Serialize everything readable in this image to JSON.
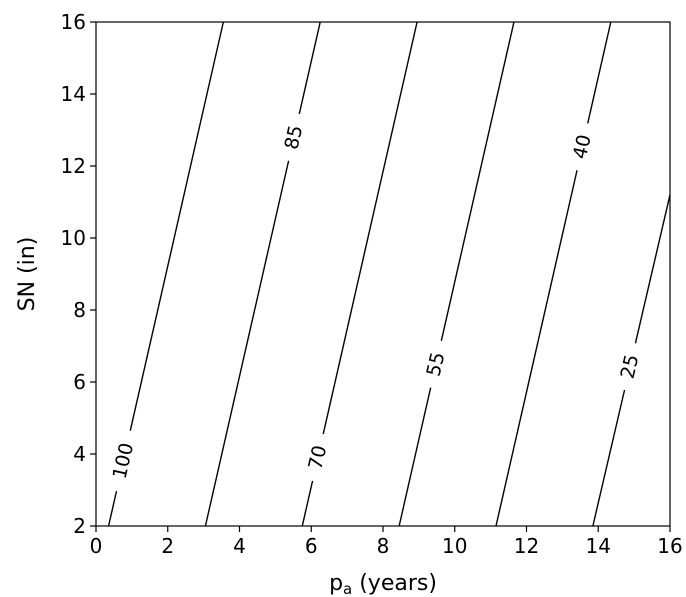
{
  "chart_data": {
    "type": "contour",
    "xlabel": "p",
    "xlabel_subscript": "a",
    "xlabel_suffix": " (years)",
    "ylabel": "SN (in)",
    "xlim": [
      0,
      16
    ],
    "ylim": [
      2,
      16
    ],
    "xticks": [
      "0",
      "2",
      "4",
      "6",
      "8",
      "10",
      "12",
      "14",
      "16"
    ],
    "yticks": [
      "2",
      "4",
      "6",
      "8",
      "10",
      "12",
      "14",
      "16"
    ],
    "grid": false,
    "contours": [
      {
        "level": "100",
        "points": [
          [
            0.35,
            2
          ],
          [
            3.55,
            16
          ]
        ],
        "label_at": [
          0.8,
          3.8
        ]
      },
      {
        "level": "85",
        "points": [
          [
            3.05,
            2
          ],
          [
            6.25,
            16
          ]
        ],
        "label_at": [
          5.5,
          12.8
        ]
      },
      {
        "level": "70",
        "points": [
          [
            5.75,
            2
          ],
          [
            8.95,
            16
          ]
        ],
        "label_at": [
          6.2,
          3.9
        ]
      },
      {
        "level": "55",
        "points": [
          [
            8.45,
            2
          ],
          [
            11.65,
            16
          ]
        ],
        "label_at": [
          9.45,
          6.5
        ]
      },
      {
        "level": "40",
        "points": [
          [
            11.15,
            2
          ],
          [
            14.35,
            16
          ]
        ],
        "label_at": [
          13.7,
          12.5
        ]
      },
      {
        "level": "25",
        "points": [
          [
            13.85,
            2
          ],
          [
            16.0,
            11.2
          ]
        ],
        "label_at": [
          15.0,
          6.4
        ]
      }
    ]
  }
}
